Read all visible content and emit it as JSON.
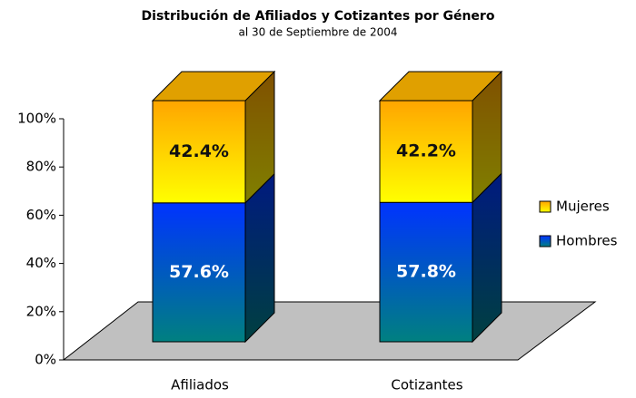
{
  "chart_data": {
    "type": "bar",
    "stacked": true,
    "three_d": true,
    "title": "Distribución de Afiliados y Cotizantes por Género",
    "subtitle": "al 30 de Septiembre de 2004",
    "categories": [
      "Afiliados",
      "Cotizantes"
    ],
    "series": [
      {
        "name": "Hombres",
        "color": "#0033ff",
        "values": [
          57.6,
          57.8
        ],
        "value_labels": [
          "57.6%",
          "57.8%"
        ]
      },
      {
        "name": "Mujeres",
        "color": "#ffa500",
        "values": [
          42.4,
          42.2
        ],
        "value_labels": [
          "42.4%",
          "42.2%"
        ]
      }
    ],
    "ylim": [
      0,
      100
    ],
    "yticks": [
      {
        "value": 0,
        "label": "0%"
      },
      {
        "value": 20,
        "label": "20%"
      },
      {
        "value": 40,
        "label": "40%"
      },
      {
        "value": 60,
        "label": "60%"
      },
      {
        "value": 80,
        "label": "80%"
      },
      {
        "value": 100,
        "label": "100%"
      }
    ],
    "legend": "right"
  }
}
